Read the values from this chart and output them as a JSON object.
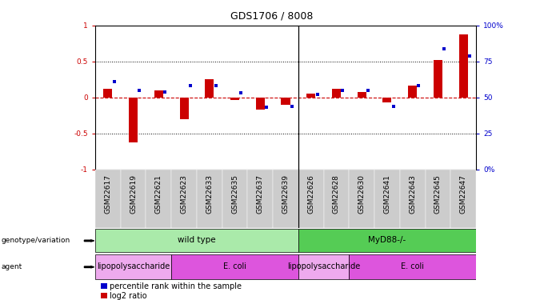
{
  "title": "GDS1706 / 8008",
  "samples": [
    "GSM22617",
    "GSM22619",
    "GSM22621",
    "GSM22623",
    "GSM22633",
    "GSM22635",
    "GSM22637",
    "GSM22639",
    "GSM22626",
    "GSM22628",
    "GSM22630",
    "GSM22641",
    "GSM22643",
    "GSM22645",
    "GSM22647"
  ],
  "log2_ratio": [
    0.12,
    -0.62,
    0.1,
    -0.3,
    0.25,
    -0.04,
    -0.17,
    -0.1,
    0.05,
    0.12,
    0.08,
    -0.07,
    0.17,
    0.52,
    0.88
  ],
  "percentile_display": [
    61,
    55,
    54,
    58,
    58,
    53,
    43,
    44,
    52,
    55,
    55,
    44,
    58,
    84,
    79
  ],
  "ylim_left": [
    -1,
    1
  ],
  "yticks_left": [
    -1,
    -0.5,
    0,
    0.5,
    1
  ],
  "ytick_labels_left": [
    "-1",
    "-0.5",
    "0",
    "0.5",
    "1"
  ],
  "yticks_right": [
    0,
    25,
    50,
    75,
    100
  ],
  "ytick_labels_right": [
    "0%",
    "25",
    "50",
    "75",
    "100%"
  ],
  "hlines": [
    0.5,
    -0.5
  ],
  "bar_width": 0.35,
  "bar_color_red": "#cc0000",
  "bar_color_blue": "#0000cc",
  "separator_after_index": 7,
  "genotype_groups": [
    {
      "label": "wild type",
      "start": 0,
      "end": 7,
      "color": "#aaeaaa"
    },
    {
      "label": "MyD88-/-",
      "start": 8,
      "end": 14,
      "color": "#55cc55"
    }
  ],
  "agent_groups": [
    {
      "label": "lipopolysaccharide",
      "start": 0,
      "end": 2,
      "color": "#eeaaee"
    },
    {
      "label": "E. coli",
      "start": 3,
      "end": 7,
      "color": "#dd55dd"
    },
    {
      "label": "lipopolysaccharide",
      "start": 8,
      "end": 9,
      "color": "#eeaaee"
    },
    {
      "label": "E. coli",
      "start": 10,
      "end": 14,
      "color": "#dd55dd"
    }
  ],
  "tick_fontsize": 6.5,
  "legend_items": [
    {
      "label": "log2 ratio",
      "color": "#cc0000"
    },
    {
      "label": "percentile rank within the sample",
      "color": "#0000cc"
    }
  ],
  "left_label_genotype": "genotype/variation",
  "left_label_agent": "agent"
}
